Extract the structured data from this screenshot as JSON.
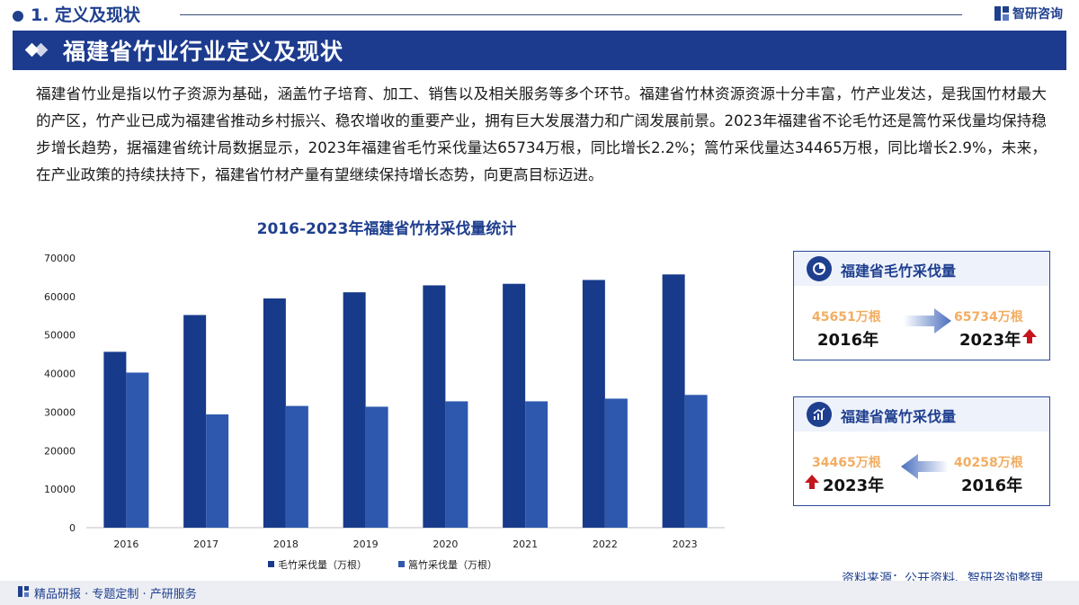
{
  "header": {
    "section_title": "1. 定义及现状",
    "logo_text": "智研咨询"
  },
  "banner": {
    "title": "福建省竹业行业定义及现状"
  },
  "intro": {
    "text": "福建省竹业是指以竹子资源为基础，涵盖竹子培育、加工、销售以及相关服务等多个环节。福建省竹林资源资源十分丰富，竹产业发达，是我国竹材最大的产区，竹产业已成为福建省推动乡村振兴、稳农增收的重要产业，拥有巨大发展潜力和广阔发展前景。2023年福建省不论毛竹还是篙竹采伐量均保持稳步增长趋势，据福建省统计局数据显示，2023年福建省毛竹采伐量达65734万根，同比增长2.2%；篙竹采伐量达34465万根，同比增长2.9%，未来，在产业政策的持续扶持下，福建省竹材产量有望继续保持增长态势，向更高目标迈进。"
  },
  "chart_data": {
    "type": "bar",
    "title": "2016-2023年福建省竹材采伐量统计",
    "categories": [
      "2016",
      "2017",
      "2018",
      "2019",
      "2020",
      "2021",
      "2022",
      "2023"
    ],
    "series": [
      {
        "name": "毛竹采伐量（万根）",
        "color": "#173a8b",
        "values": [
          45651,
          55200,
          59500,
          61100,
          62900,
          63300,
          64300,
          65734
        ]
      },
      {
        "name": "篙竹采伐量（万根）",
        "color": "#2e58ad",
        "values": [
          40258,
          29400,
          31600,
          31400,
          32800,
          32800,
          33500,
          34465
        ]
      }
    ],
    "ylim": [
      0,
      70000
    ],
    "yticks": [
      0,
      10000,
      20000,
      30000,
      40000,
      50000,
      60000,
      70000
    ],
    "grid": false,
    "legend": "bottom"
  },
  "cards": {
    "maozhu": {
      "title": "福建省毛竹采伐量",
      "from_value": "45651万根",
      "from_year": "2016年",
      "to_value": "65734万根",
      "to_year": "2023年"
    },
    "gaozhu": {
      "title": "福建省篙竹采伐量",
      "left_value": "34465万根",
      "left_year": "2023年",
      "right_value": "40258万根",
      "right_year": "2016年"
    }
  },
  "footer": {
    "source": "资料来源：公开资料、智研咨询整理",
    "slogan": "精品研报 · 专题定制 · 产研服务"
  }
}
